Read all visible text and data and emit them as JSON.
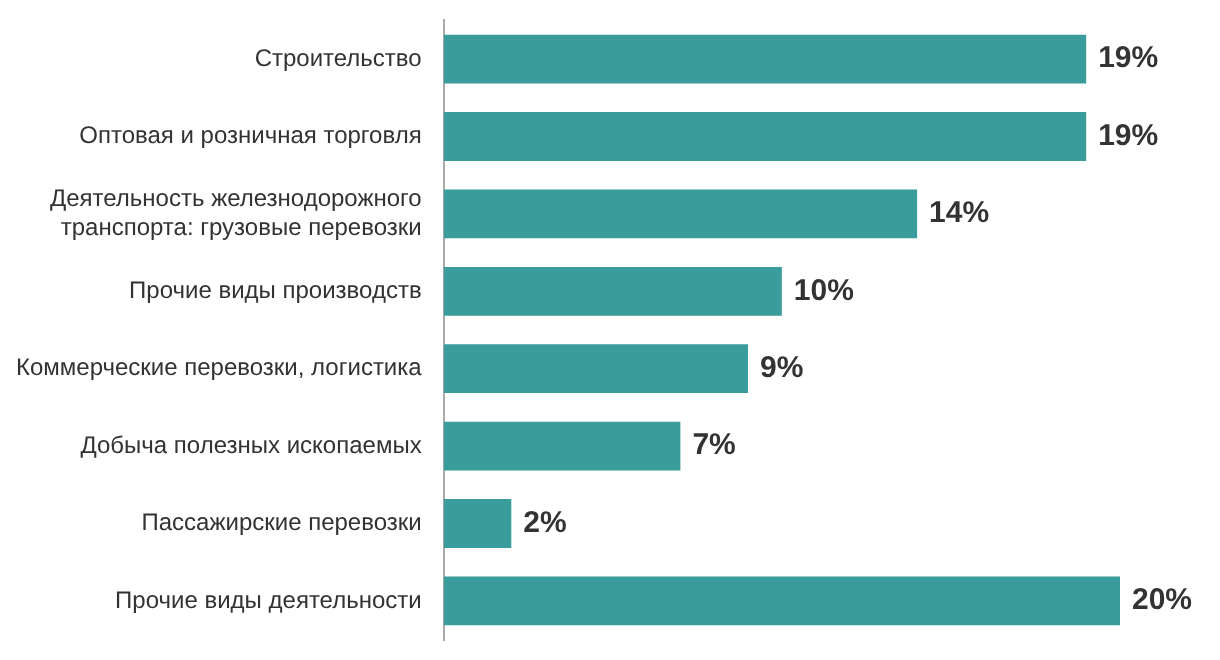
{
  "chart_data": {
    "type": "bar",
    "orientation": "horizontal",
    "categories": [
      "Строительство",
      "Оптовая и розничная торговля",
      "Деятельность железнодорожного транспорта: грузовые перевозки",
      "Прочие виды производств",
      "Коммерческие перевозки, логистика",
      "Добыча полезных ископаемых",
      "Пассажирские перевозки",
      "Прочие виды деятельности"
    ],
    "values": [
      19,
      19,
      14,
      10,
      9,
      7,
      2,
      20
    ],
    "value_labels": [
      "19%",
      "19%",
      "14%",
      "10%",
      "9%",
      "7%",
      "2%",
      "20%"
    ],
    "color": "#3b9c9c"
  }
}
